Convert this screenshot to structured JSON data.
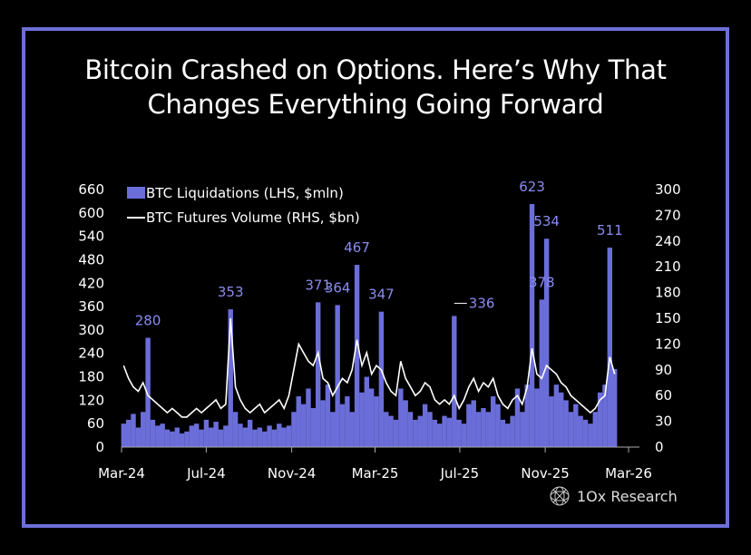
{
  "title_lines": [
    "Bitcoin Crashed on Options. Here’s Why That",
    "Changes Everything Going Forward"
  ],
  "brand": "1Ox Research",
  "colors": {
    "frame": "#6d6fd8",
    "bars": "#6b6ed9",
    "line": "#ffffff",
    "annotations": "#8a8cf0",
    "background": "#000000"
  },
  "chart_data": {
    "type": "bar+line",
    "legend": [
      "BTC Liquidations (LHS, $mln)",
      "BTC Futures Volume (RHS, $bn)"
    ],
    "legend_position": "top-left",
    "grid": false,
    "x_ticks": [
      "Mar-24",
      "Jul-24",
      "Nov-24",
      "Mar-25",
      "Jul-25",
      "Nov-25",
      "Mar-26"
    ],
    "x_tick_dates": [
      "2024-03-01",
      "2024-07-01",
      "2024-11-01",
      "2025-03-01",
      "2025-07-01",
      "2025-11-01",
      "2026-03-01"
    ],
    "y_left": {
      "min": 0,
      "max": 660,
      "ticks": [
        0,
        60,
        120,
        180,
        240,
        300,
        360,
        420,
        480,
        540,
        600,
        660
      ]
    },
    "y_right": {
      "min": 0,
      "max": 300,
      "ticks": [
        0,
        30,
        60,
        90,
        120,
        150,
        180,
        210,
        240,
        270,
        300
      ]
    },
    "x": [
      "2024-03-04",
      "2024-03-11",
      "2024-03-18",
      "2024-03-25",
      "2024-04-01",
      "2024-04-08",
      "2024-04-15",
      "2024-04-22",
      "2024-04-29",
      "2024-05-06",
      "2024-05-13",
      "2024-05-20",
      "2024-05-27",
      "2024-06-03",
      "2024-06-10",
      "2024-06-17",
      "2024-06-24",
      "2024-07-01",
      "2024-07-08",
      "2024-07-15",
      "2024-07-22",
      "2024-07-29",
      "2024-08-05",
      "2024-08-12",
      "2024-08-19",
      "2024-08-26",
      "2024-09-02",
      "2024-09-09",
      "2024-09-16",
      "2024-09-23",
      "2024-09-30",
      "2024-10-07",
      "2024-10-14",
      "2024-10-21",
      "2024-10-28",
      "2024-11-04",
      "2024-11-11",
      "2024-11-18",
      "2024-11-25",
      "2024-12-02",
      "2024-12-09",
      "2024-12-16",
      "2024-12-23",
      "2024-12-30",
      "2025-01-06",
      "2025-01-13",
      "2025-01-20",
      "2025-01-27",
      "2025-02-03",
      "2025-02-10",
      "2025-02-17",
      "2025-02-24",
      "2025-03-03",
      "2025-03-10",
      "2025-03-17",
      "2025-03-24",
      "2025-03-31",
      "2025-04-07",
      "2025-04-14",
      "2025-04-21",
      "2025-04-28",
      "2025-05-05",
      "2025-05-12",
      "2025-05-19",
      "2025-05-26",
      "2025-06-02",
      "2025-06-09",
      "2025-06-16",
      "2025-06-23",
      "2025-06-30",
      "2025-07-07",
      "2025-07-14",
      "2025-07-21",
      "2025-07-28",
      "2025-08-04",
      "2025-08-11",
      "2025-08-18",
      "2025-08-25",
      "2025-09-01",
      "2025-09-08",
      "2025-09-15",
      "2025-09-22",
      "2025-09-29",
      "2025-10-06",
      "2025-10-13",
      "2025-10-20",
      "2025-10-27",
      "2025-11-03",
      "2025-11-10",
      "2025-11-17",
      "2025-11-24",
      "2025-12-01",
      "2025-12-08",
      "2025-12-15",
      "2025-12-22",
      "2025-12-29",
      "2026-01-05",
      "2026-01-12",
      "2026-01-19",
      "2026-01-26",
      "2026-02-02",
      "2026-02-09"
    ],
    "series": [
      {
        "name": "BTC Liquidations (LHS, $mln)",
        "axis": "left",
        "kind": "bar",
        "values": [
          60,
          70,
          85,
          50,
          90,
          280,
          70,
          55,
          60,
          45,
          40,
          50,
          35,
          40,
          55,
          60,
          45,
          70,
          50,
          65,
          45,
          55,
          353,
          90,
          60,
          50,
          70,
          45,
          50,
          40,
          55,
          45,
          60,
          50,
          55,
          90,
          130,
          110,
          150,
          100,
          371,
          120,
          160,
          90,
          364,
          110,
          130,
          90,
          467,
          140,
          180,
          150,
          130,
          347,
          90,
          80,
          70,
          150,
          120,
          90,
          70,
          80,
          110,
          90,
          70,
          60,
          80,
          75,
          336,
          70,
          60,
          110,
          120,
          90,
          100,
          90,
          130,
          110,
          70,
          60,
          80,
          150,
          90,
          160,
          623,
          150,
          378,
          534,
          130,
          160,
          140,
          120,
          90,
          110,
          80,
          70,
          60,
          90,
          140,
          160,
          511,
          200
        ]
      },
      {
        "name": "BTC Futures Volume (RHS, $bn)",
        "axis": "right",
        "kind": "line",
        "values": [
          95,
          80,
          70,
          65,
          75,
          60,
          55,
          50,
          45,
          40,
          45,
          40,
          35,
          35,
          40,
          45,
          40,
          45,
          50,
          55,
          45,
          50,
          150,
          70,
          55,
          45,
          40,
          45,
          50,
          40,
          45,
          50,
          55,
          45,
          60,
          90,
          120,
          110,
          100,
          95,
          110,
          80,
          75,
          60,
          70,
          80,
          75,
          90,
          125,
          95,
          110,
          85,
          95,
          90,
          75,
          65,
          60,
          100,
          80,
          70,
          60,
          65,
          75,
          70,
          55,
          50,
          55,
          50,
          60,
          45,
          55,
          70,
          80,
          65,
          75,
          70,
          80,
          60,
          50,
          45,
          55,
          60,
          50,
          70,
          115,
          85,
          80,
          95,
          90,
          85,
          75,
          70,
          60,
          55,
          50,
          45,
          40,
          45,
          55,
          60,
          105,
          85
        ]
      }
    ],
    "annotations": [
      {
        "date": "2024-04-08",
        "value": 280,
        "label": "280"
      },
      {
        "date": "2024-08-05",
        "value": 353,
        "label": "353"
      },
      {
        "date": "2024-12-09",
        "value": 371,
        "label": "371"
      },
      {
        "date": "2025-01-06",
        "value": 364,
        "label": "364"
      },
      {
        "date": "2025-02-03",
        "value": 467,
        "label": "467"
      },
      {
        "date": "2025-03-10",
        "value": 347,
        "label": "347"
      },
      {
        "date": "2025-06-23",
        "value": 336,
        "label": "336"
      },
      {
        "date": "2025-10-13",
        "value": 623,
        "label": "623"
      },
      {
        "date": "2025-10-27",
        "value": 378,
        "label": "378"
      },
      {
        "date": "2025-11-03",
        "value": 534,
        "label": "534"
      },
      {
        "date": "2026-02-02",
        "value": 511,
        "label": "511"
      }
    ]
  }
}
